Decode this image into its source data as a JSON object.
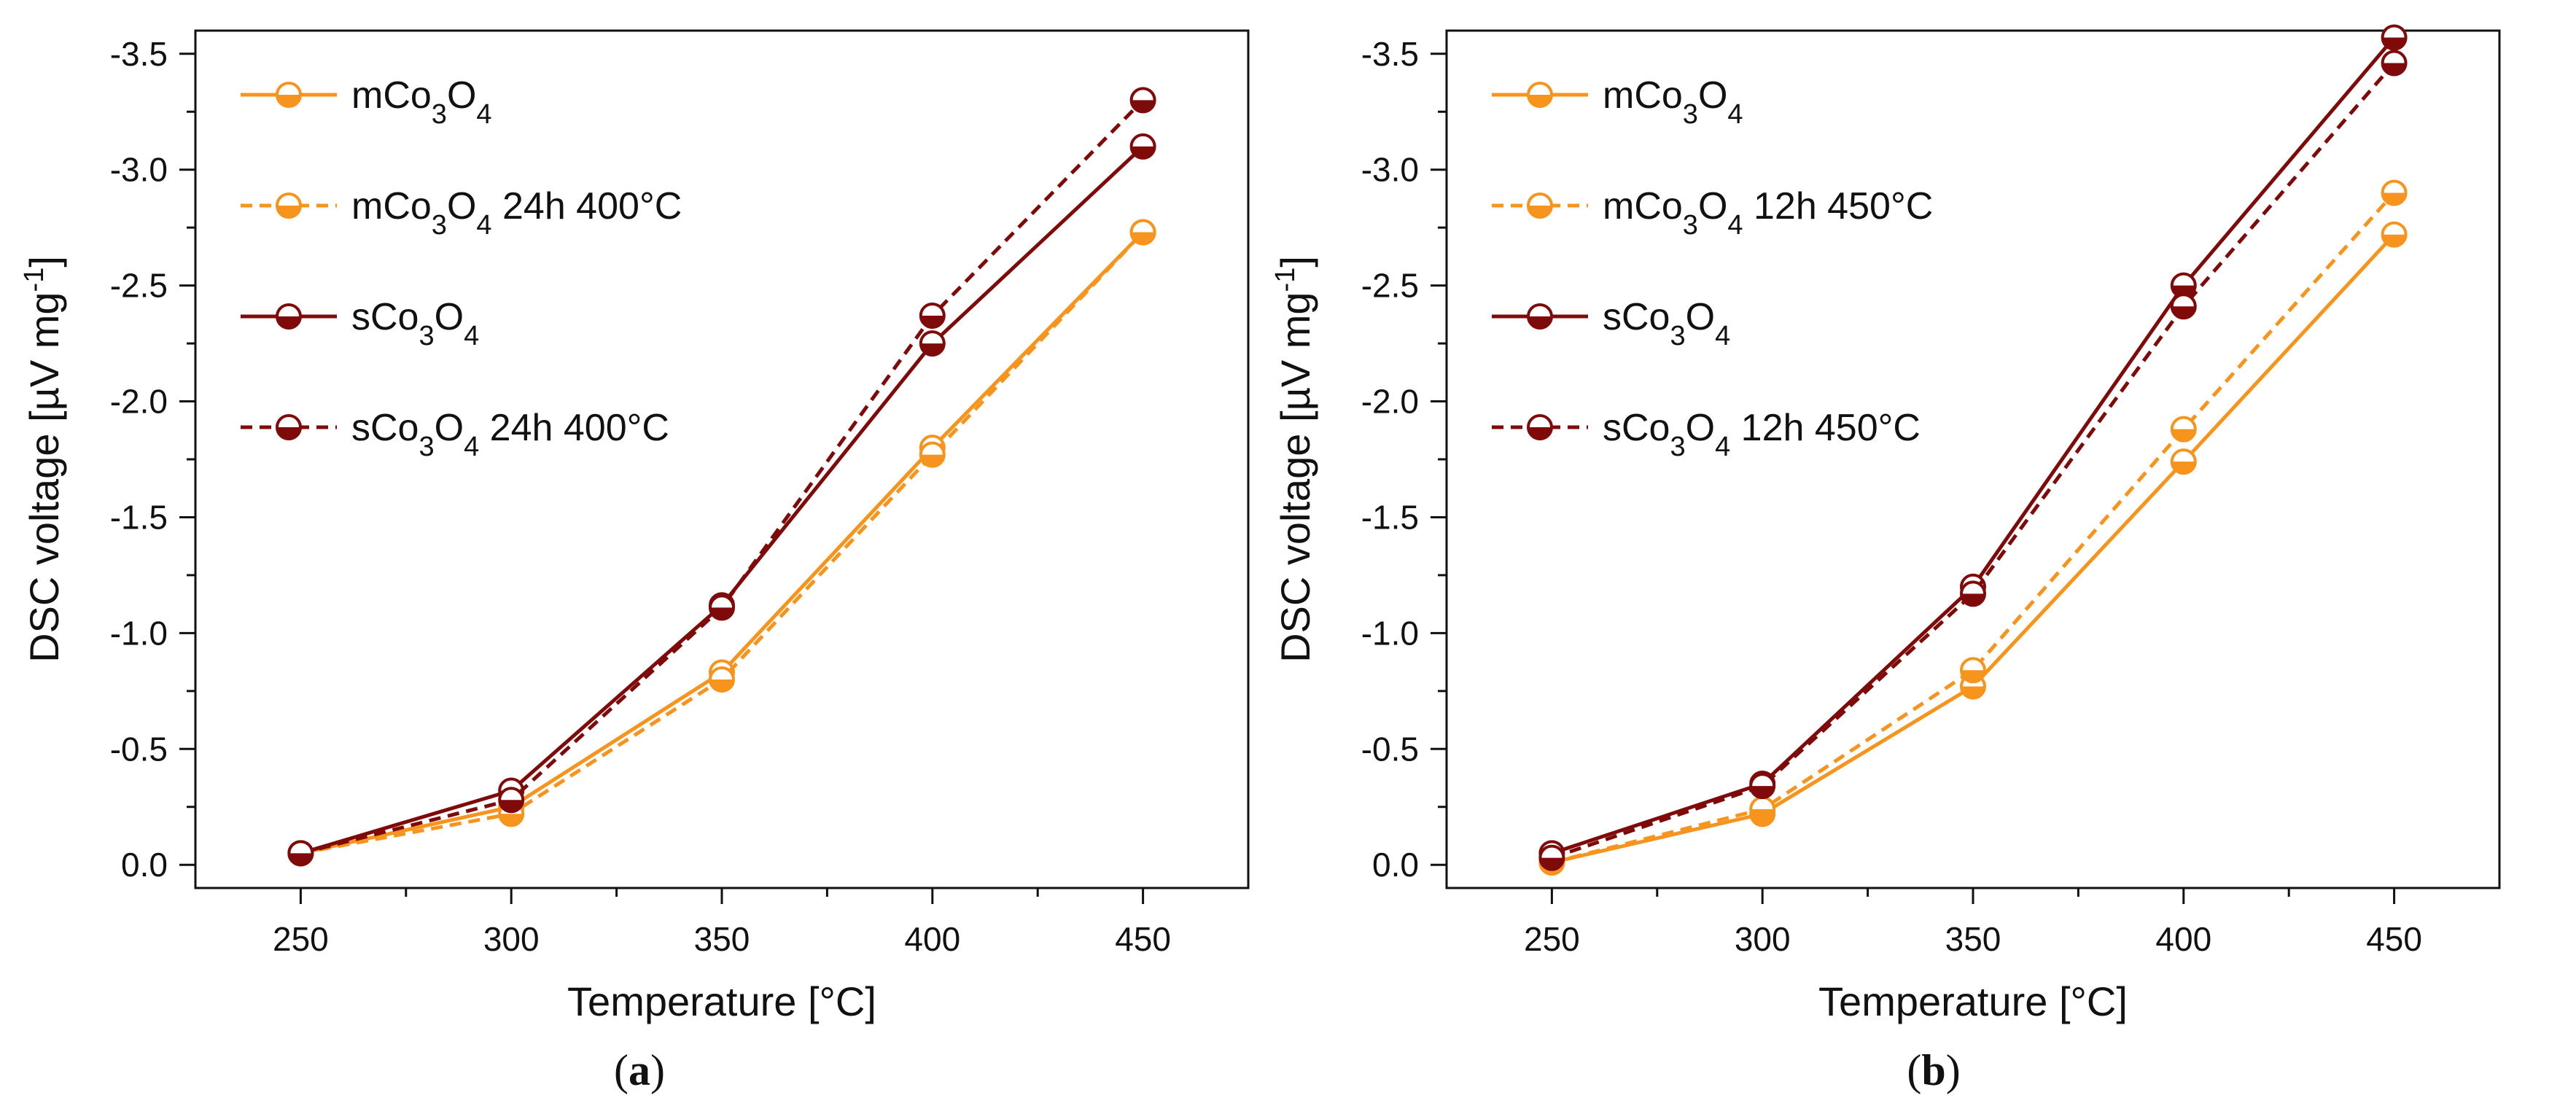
{
  "colors": {
    "orange": "#f7941d",
    "dark_red": "#7f0a0a",
    "axis": "#111111"
  },
  "chart_data": [
    {
      "panel": "a",
      "type": "line",
      "xlabel": "Temperature [°C]",
      "ylabel": "DSC voltage [µV mg",
      "ylabel_sup": "-1",
      "ylabel_end": "]",
      "xlim": [
        225,
        475
      ],
      "ylim": [
        0.1,
        -3.6
      ],
      "x_ticks": [
        250,
        300,
        350,
        400,
        450
      ],
      "y_ticks": [
        0.0,
        -0.5,
        -1.0,
        -1.5,
        -2.0,
        -2.5,
        -3.0,
        -3.5
      ],
      "y_tick_labels": [
        "0.0",
        "-0.5",
        "-1.0",
        "-1.5",
        "-2.0",
        "-2.5",
        "-3.0",
        "-3.5"
      ],
      "legend_position": "top-left",
      "series": [
        {
          "name_main": "mCo",
          "name_sub1": "3",
          "name_mid": "O",
          "name_sub2": "4",
          "name_suffix": "",
          "color_key": "orange",
          "dashed": false,
          "x": [
            250,
            300,
            350,
            400,
            450
          ],
          "values": [
            -0.05,
            -0.25,
            -0.83,
            -1.8,
            -2.73
          ]
        },
        {
          "name_main": "mCo",
          "name_sub1": "3",
          "name_mid": "O",
          "name_sub2": "4",
          "name_suffix": " 24h 400°C",
          "color_key": "orange",
          "dashed": true,
          "x": [
            250,
            300,
            350,
            400,
            450
          ],
          "values": [
            -0.05,
            -0.22,
            -0.8,
            -1.77,
            -2.73
          ]
        },
        {
          "name_main": "sCo",
          "name_sub1": "3",
          "name_mid": "O",
          "name_sub2": "4",
          "name_suffix": "",
          "color_key": "dark_red",
          "dashed": false,
          "x": [
            250,
            300,
            350,
            400,
            450
          ],
          "values": [
            -0.05,
            -0.32,
            -1.12,
            -2.25,
            -3.1
          ]
        },
        {
          "name_main": "sCo",
          "name_sub1": "3",
          "name_mid": "O",
          "name_sub2": "4",
          "name_suffix": " 24h 400°C",
          "color_key": "dark_red",
          "dashed": true,
          "x": [
            250,
            300,
            350,
            400,
            450
          ],
          "values": [
            -0.05,
            -0.28,
            -1.11,
            -2.37,
            -3.3
          ]
        }
      ]
    },
    {
      "panel": "b",
      "type": "line",
      "xlabel": "Temperature [°C]",
      "ylabel": "DSC voltage [µV mg",
      "ylabel_sup": "-1",
      "ylabel_end": "]",
      "xlim": [
        225,
        475
      ],
      "ylim": [
        0.1,
        -3.6
      ],
      "x_ticks": [
        250,
        300,
        350,
        400,
        450
      ],
      "y_ticks": [
        0.0,
        -0.5,
        -1.0,
        -1.5,
        -2.0,
        -2.5,
        -3.0,
        -3.5
      ],
      "y_tick_labels": [
        "0.0",
        "-0.5",
        "-1.0",
        "-1.5",
        "-2.0",
        "-2.5",
        "-3.0",
        "-3.5"
      ],
      "legend_position": "top-left",
      "series": [
        {
          "name_main": "mCo",
          "name_sub1": "3",
          "name_mid": "O",
          "name_sub2": "4",
          "name_suffix": "",
          "color_key": "orange",
          "dashed": false,
          "x": [
            250,
            300,
            350,
            400,
            450
          ],
          "values": [
            -0.01,
            -0.22,
            -0.77,
            -1.74,
            -2.72
          ]
        },
        {
          "name_main": "mCo",
          "name_sub1": "3",
          "name_mid": "O",
          "name_sub2": "4",
          "name_suffix": " 12h 450°C",
          "color_key": "orange",
          "dashed": true,
          "x": [
            250,
            300,
            350,
            400,
            450
          ],
          "values": [
            -0.01,
            -0.24,
            -0.84,
            -1.88,
            -2.9
          ]
        },
        {
          "name_main": "sCo",
          "name_sub1": "3",
          "name_mid": "O",
          "name_sub2": "4",
          "name_suffix": "",
          "color_key": "dark_red",
          "dashed": false,
          "x": [
            250,
            300,
            350,
            400,
            450
          ],
          "values": [
            -0.05,
            -0.35,
            -1.2,
            -2.5,
            -3.57
          ]
        },
        {
          "name_main": "sCo",
          "name_sub1": "3",
          "name_mid": "O",
          "name_sub2": "4",
          "name_suffix": " 12h 450°C",
          "color_key": "dark_red",
          "dashed": true,
          "x": [
            250,
            300,
            350,
            400,
            450
          ],
          "values": [
            -0.03,
            -0.34,
            -1.17,
            -2.41,
            -3.46
          ]
        }
      ]
    }
  ],
  "panel_labels": [
    "a",
    "b"
  ]
}
